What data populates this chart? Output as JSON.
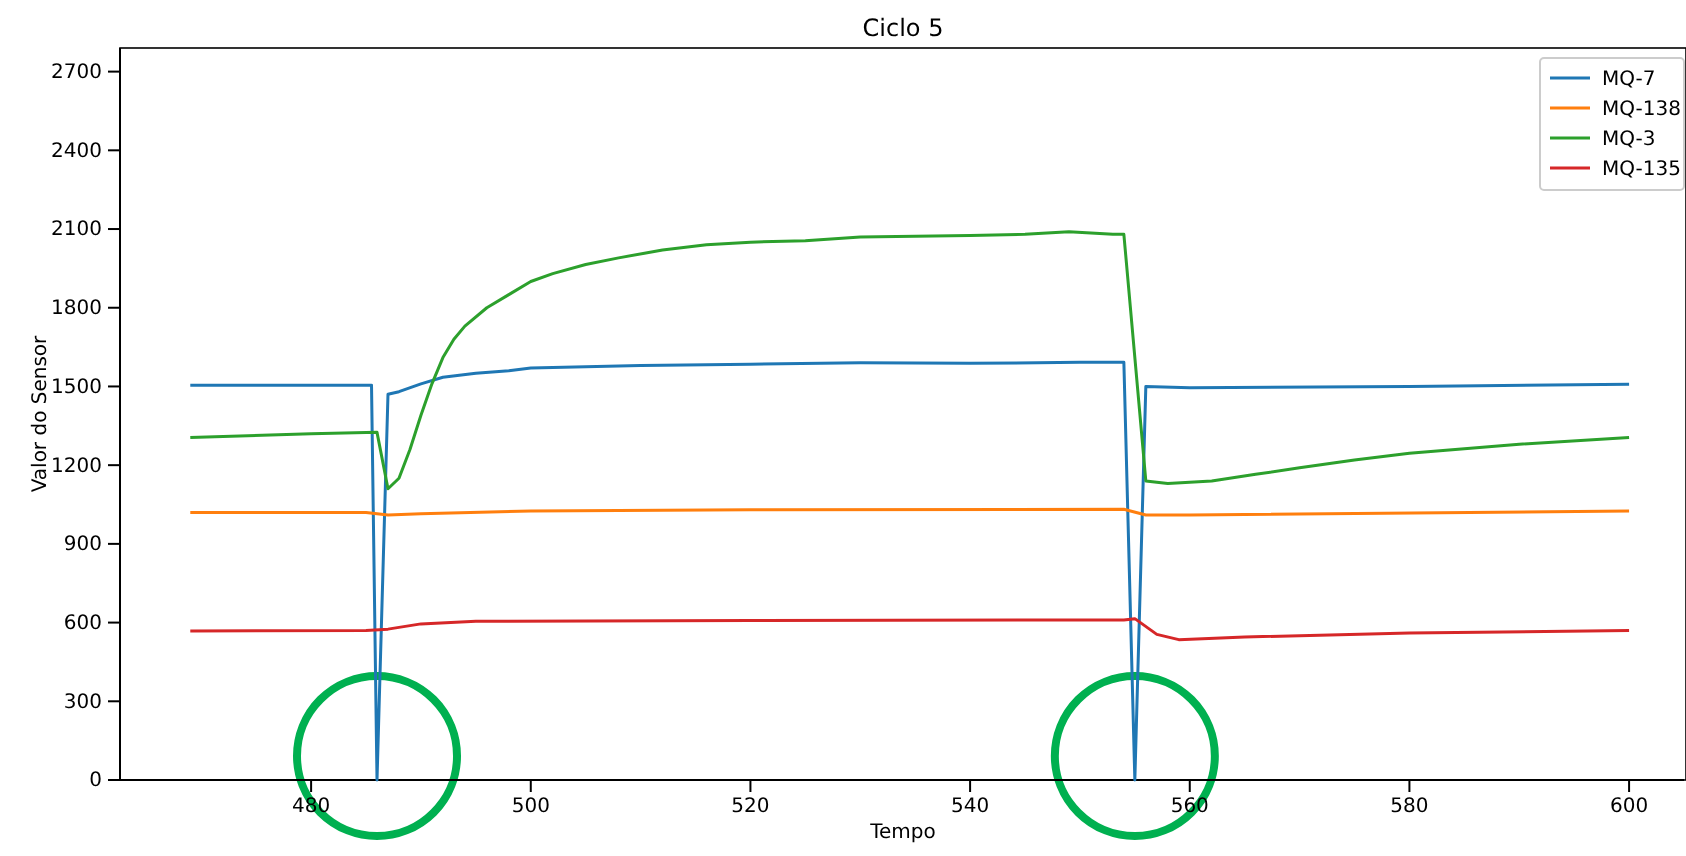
{
  "chart_data": {
    "type": "line",
    "title": "Ciclo 5",
    "xlabel": "Tempo",
    "ylabel": "Valor do Sensor",
    "xlim": [
      462.6,
      605
    ],
    "xticks": [
      480,
      500,
      520,
      540,
      560,
      580,
      600
    ],
    "ylim": [
      0,
      2790
    ],
    "yticks": [
      0,
      300,
      600,
      900,
      1200,
      1500,
      1800,
      2100,
      2400,
      2700
    ],
    "legend": "top right",
    "series": [
      {
        "name": "MQ-7",
        "color": "#1f77b4",
        "x": [
          469,
          480,
          485.5,
          486,
          487,
          488,
          490,
          492,
          495,
          498,
          500,
          510,
          520,
          530,
          540,
          550,
          554,
          555,
          556,
          560,
          580,
          600
        ],
        "values": [
          1505,
          1505,
          1505,
          0,
          1470,
          1480,
          1510,
          1535,
          1550,
          1560,
          1570,
          1580,
          1585,
          1590,
          1588,
          1592,
          1592,
          0,
          1500,
          1495,
          1500,
          1508
        ]
      },
      {
        "name": "MQ-138",
        "color": "#ff7f0e",
        "x": [
          469,
          485,
          487,
          490,
          500,
          520,
          554,
          556,
          560,
          600
        ],
        "values": [
          1020,
          1020,
          1010,
          1015,
          1025,
          1030,
          1032,
          1010,
          1010,
          1025
        ]
      },
      {
        "name": "MQ-3",
        "color": "#2ca02c",
        "x": [
          469,
          480,
          486,
          487,
          488,
          489,
          490,
          491,
          492,
          493,
          494,
          496,
          498,
          500,
          502,
          505,
          508,
          512,
          516,
          520,
          525,
          530,
          540,
          545,
          549,
          553,
          554,
          556,
          558,
          562,
          566,
          570,
          575,
          580,
          590,
          600
        ],
        "values": [
          1305,
          1320,
          1325,
          1110,
          1150,
          1260,
          1390,
          1510,
          1610,
          1680,
          1730,
          1800,
          1850,
          1900,
          1930,
          1965,
          1990,
          2020,
          2040,
          2050,
          2055,
          2070,
          2075,
          2080,
          2090,
          2080,
          2080,
          1140,
          1130,
          1140,
          1165,
          1190,
          1220,
          1245,
          1280,
          1305
        ]
      },
      {
        "name": "MQ-135",
        "color": "#d62728",
        "x": [
          469,
          485,
          487,
          490,
          495,
          520,
          554,
          555,
          557,
          559,
          565,
          580,
          600
        ],
        "values": [
          568,
          570,
          575,
          595,
          605,
          608,
          610,
          615,
          555,
          535,
          545,
          560,
          570
        ]
      }
    ]
  }
}
